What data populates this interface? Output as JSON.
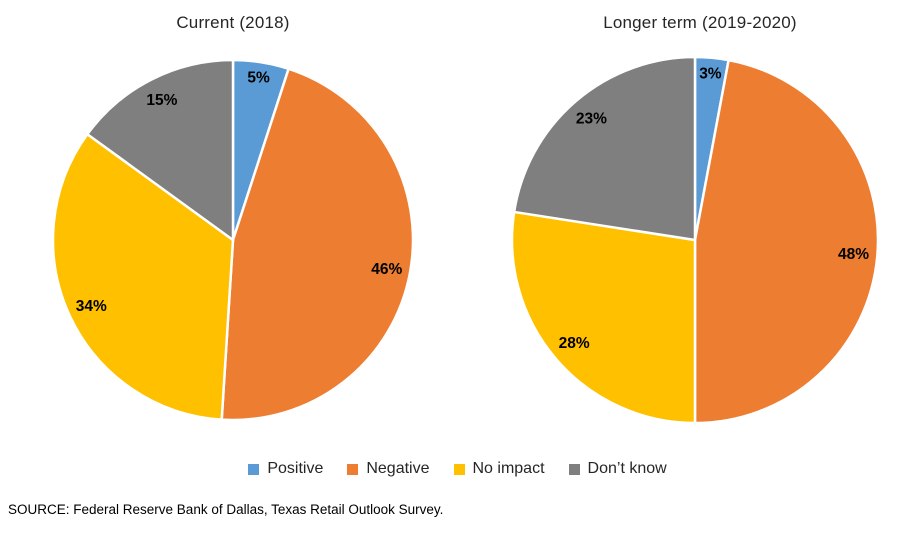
{
  "chart_data": [
    {
      "type": "pie",
      "title": "Current (2018)",
      "labels": [
        "Positive",
        "Negative",
        "No impact",
        "Don’t know"
      ],
      "values": [
        5,
        46,
        34,
        15
      ],
      "data_labels": [
        "5%",
        "46%",
        "34%",
        "15%"
      ],
      "colors": [
        "#5B9BD5",
        "#ED7D31",
        "#FFC000",
        "#7F7F7F"
      ],
      "start_angle_deg": 0,
      "direction": "clockwise",
      "labels_position": "inside-end",
      "legend_position": "bottom-shared"
    },
    {
      "type": "pie",
      "title": "Longer term (2019-2020)",
      "labels": [
        "Positive",
        "Negative",
        "No impact",
        "Don’t know"
      ],
      "values": [
        3,
        48,
        28,
        23
      ],
      "data_labels": [
        "3%",
        "48%",
        "28%",
        "23%"
      ],
      "colors": [
        "#5B9BD5",
        "#ED7D31",
        "#FFC000",
        "#7F7F7F"
      ],
      "start_angle_deg": 0,
      "direction": "clockwise",
      "labels_position": "inside-end",
      "legend_position": "bottom-shared"
    }
  ],
  "legend": {
    "items": [
      {
        "label": "Positive",
        "color": "#5B9BD5"
      },
      {
        "label": "Negative",
        "color": "#ED7D31"
      },
      {
        "label": "No impact",
        "color": "#FFC000"
      },
      {
        "label": "Don’t know",
        "color": "#7F7F7F"
      }
    ]
  },
  "source_note": "SOURCE: Federal Reserve Bank of Dallas, Texas Retail Outlook Survey."
}
